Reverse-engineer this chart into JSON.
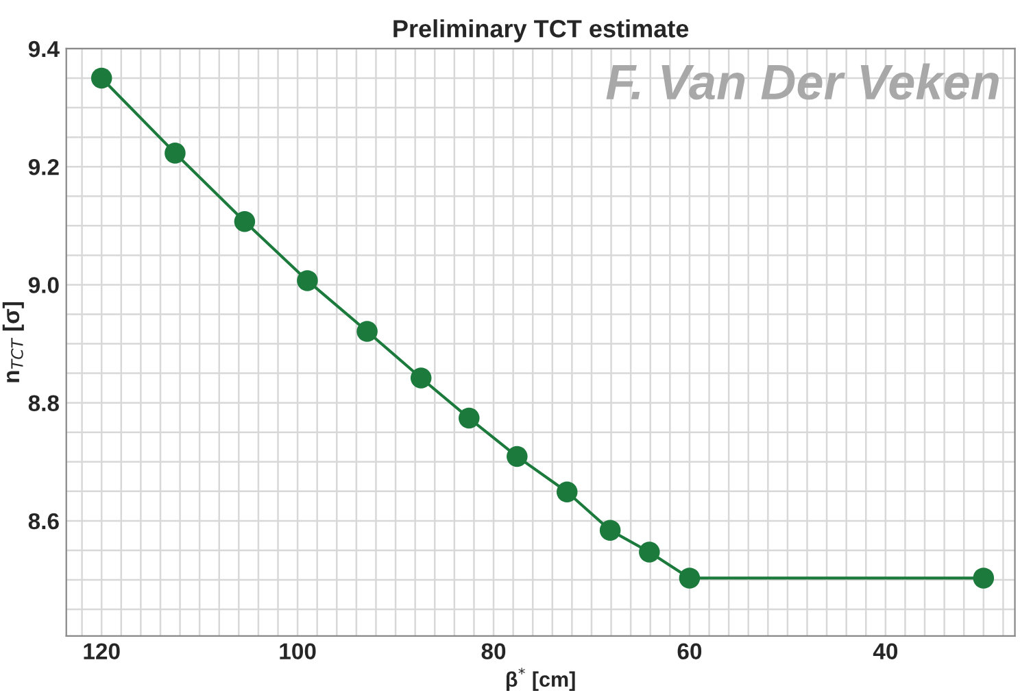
{
  "chart_data": {
    "type": "line",
    "title": "Preliminary TCT estimate",
    "xlabel": "β$^{*}$ [cm]",
    "ylabel": "n$_{TCT}$ [σ]",
    "annotations": [
      "F. Van Der Veken"
    ],
    "x": [
      120,
      112.5,
      105.4,
      99,
      92.9,
      87.4,
      82.5,
      77.6,
      72.5,
      68.1,
      64.1,
      60,
      30
    ],
    "series": [
      {
        "color": "#1b7a3c",
        "values": [
          9.35,
          9.223,
          9.107,
          9.007,
          8.921,
          8.842,
          8.774,
          8.709,
          8.649,
          8.584,
          8.547,
          8.503,
          8.503
        ]
      }
    ],
    "marker": "circle",
    "line_style": "solid",
    "grid": true,
    "xlim": [
      123.6,
      26.8
    ],
    "ylim": [
      8.405,
      9.4
    ],
    "xticks": [
      {
        "value": 122,
        "label": null
      },
      120,
      {
        "value": 118,
        "label": null
      },
      {
        "value": 116,
        "label": null
      },
      {
        "value": 114,
        "label": null
      },
      {
        "value": 112,
        "label": null
      },
      {
        "value": 110,
        "label": null
      },
      {
        "value": 108,
        "label": null
      },
      {
        "value": 106,
        "label": null
      },
      {
        "value": 104,
        "label": null
      },
      {
        "value": 102,
        "label": null
      },
      100,
      {
        "value": 98,
        "label": null
      },
      {
        "value": 96,
        "label": null
      },
      {
        "value": 94,
        "label": null
      },
      {
        "value": 92,
        "label": null
      },
      {
        "value": 90,
        "label": null
      },
      {
        "value": 88,
        "label": null
      },
      {
        "value": 86,
        "label": null
      },
      {
        "value": 84,
        "label": null
      },
      {
        "value": 82,
        "label": null
      },
      80,
      {
        "value": 78,
        "label": null
      },
      {
        "value": 76,
        "label": null
      },
      {
        "value": 74,
        "label": null
      },
      {
        "value": 72,
        "label": null
      },
      {
        "value": 70,
        "label": null
      },
      {
        "value": 68,
        "label": null
      },
      {
        "value": 66,
        "label": null
      },
      {
        "value": 64,
        "label": null
      },
      {
        "value": 62,
        "label": null
      },
      60,
      {
        "value": 58,
        "label": null
      },
      {
        "value": 56,
        "label": null
      },
      {
        "value": 54,
        "label": null
      },
      {
        "value": 52,
        "label": null
      },
      {
        "value": 50,
        "label": null
      },
      {
        "value": 48,
        "label": null
      },
      {
        "value": 46,
        "label": null
      },
      {
        "value": 44,
        "label": null
      },
      {
        "value": 42,
        "label": null
      },
      40,
      {
        "value": 38,
        "label": null
      },
      {
        "value": 36,
        "label": null
      },
      {
        "value": 34,
        "label": null
      },
      {
        "value": 32,
        "label": null
      },
      {
        "value": 30,
        "label": null
      },
      {
        "value": 28,
        "label": null
      }
    ],
    "yticks": [
      {
        "value": 8.45,
        "label": null
      },
      {
        "value": 8.5,
        "label": null
      },
      {
        "value": 8.55,
        "label": null
      },
      {
        "value": 8.6,
        "label": "8.6"
      },
      {
        "value": 8.65,
        "label": null
      },
      {
        "value": 8.7,
        "label": null
      },
      {
        "value": 8.75,
        "label": null
      },
      {
        "value": 8.8,
        "label": "8.8"
      },
      {
        "value": 8.85,
        "label": null
      },
      {
        "value": 8.9,
        "label": null
      },
      {
        "value": 8.95,
        "label": null
      },
      {
        "value": 9.0,
        "label": "9.0"
      },
      {
        "value": 9.05,
        "label": null
      },
      {
        "value": 9.1,
        "label": null
      },
      {
        "value": 9.15,
        "label": null
      },
      {
        "value": 9.2,
        "label": "9.2"
      },
      {
        "value": 9.25,
        "label": null
      },
      {
        "value": 9.3,
        "label": null
      },
      {
        "value": 9.35,
        "label": null
      },
      {
        "value": 9.4,
        "label": "9.4"
      }
    ]
  }
}
